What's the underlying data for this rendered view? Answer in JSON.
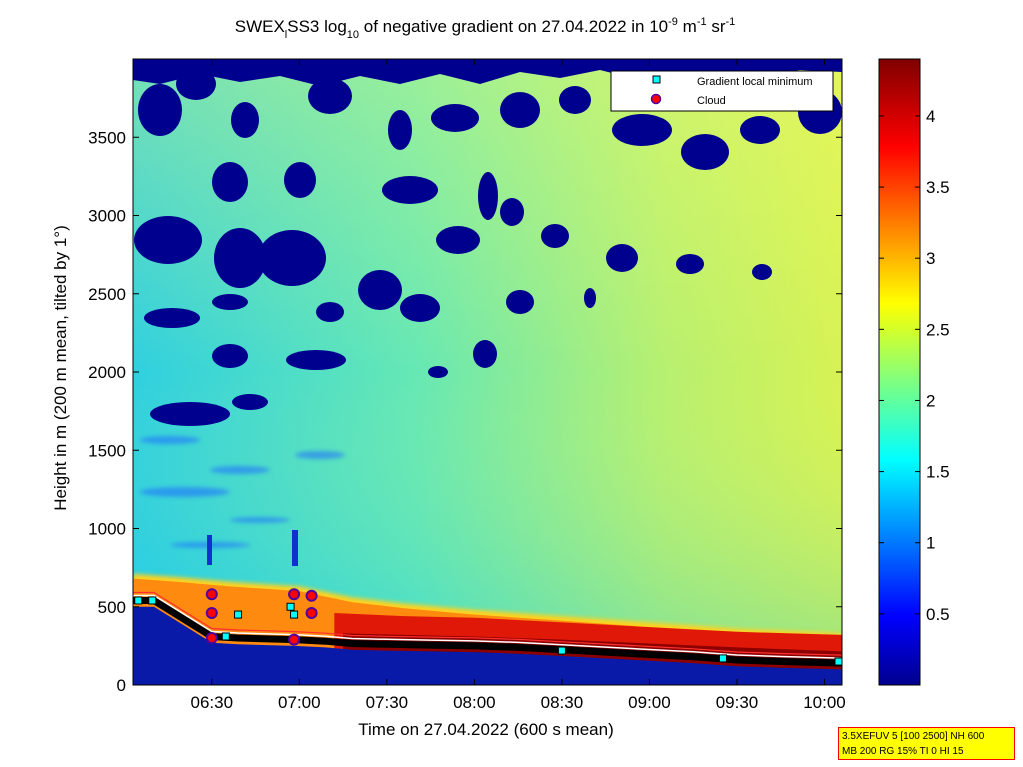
{
  "chart_data": {
    "type": "heatmap",
    "title": {
      "main": "SWEX",
      "sub1": "l",
      "mid": "SS3 log",
      "sub2": "10",
      "rest": " of negative gradient on 27.04.2022 in 10",
      "sup1": "-9",
      "unit_m": " m",
      "sup2": "-1",
      "unit_sr": " sr",
      "sup3": "-1"
    },
    "xlabel": "Time on 27.04.2022 (600 s mean)",
    "ylabel": "Height in m (200 m mean, tilted by 1°)",
    "x_range_hours": [
      6.05,
      10.1
    ],
    "x_ticks": [
      {
        "value": 6.5,
        "label": "06:30"
      },
      {
        "value": 7.0,
        "label": "07:00"
      },
      {
        "value": 7.5,
        "label": "07:30"
      },
      {
        "value": 8.0,
        "label": "08:00"
      },
      {
        "value": 8.5,
        "label": "08:30"
      },
      {
        "value": 9.0,
        "label": "09:00"
      },
      {
        "value": 9.5,
        "label": "09:30"
      },
      {
        "value": 10.0,
        "label": "10:00"
      }
    ],
    "ylim": [
      0,
      4000
    ],
    "y_ticks": [
      0,
      500,
      1000,
      1500,
      2000,
      2500,
      3000,
      3500
    ],
    "colorbar": {
      "range": [
        0,
        4.4
      ],
      "ticks": [
        0.5,
        1,
        1.5,
        2,
        2.5,
        3,
        3.5,
        4
      ],
      "colormap": "jet"
    },
    "legend": {
      "placement": "top-right",
      "entries": [
        {
          "label": "Gradient local minimum",
          "marker": "square",
          "color": "#00ffff"
        },
        {
          "label": "Cloud",
          "marker": "circle",
          "color": "#ff0000"
        }
      ]
    },
    "gradient_local_minimum_points": [
      {
        "time": 6.08,
        "height": 540
      },
      {
        "time": 6.16,
        "height": 540
      },
      {
        "time": 6.58,
        "height": 310
      },
      {
        "time": 6.65,
        "height": 450
      },
      {
        "time": 6.95,
        "height": 500
      },
      {
        "time": 6.97,
        "height": 450
      },
      {
        "time": 8.5,
        "height": 220
      },
      {
        "time": 9.42,
        "height": 170
      },
      {
        "time": 10.08,
        "height": 150
      }
    ],
    "cloud_points": [
      {
        "time": 6.5,
        "height": 580
      },
      {
        "time": 6.5,
        "height": 460
      },
      {
        "time": 6.5,
        "height": 300
      },
      {
        "time": 6.97,
        "height": 580
      },
      {
        "time": 7.07,
        "height": 570
      },
      {
        "time": 7.07,
        "height": 460
      },
      {
        "time": 6.97,
        "height": 290
      }
    ],
    "boundary_line": [
      [
        6.05,
        540
      ],
      [
        6.17,
        540
      ],
      [
        6.5,
        310
      ],
      [
        6.65,
        300
      ],
      [
        6.97,
        290
      ],
      [
        7.15,
        280
      ],
      [
        7.3,
        265
      ],
      [
        7.5,
        260
      ],
      [
        7.75,
        255
      ],
      [
        8.0,
        250
      ],
      [
        8.25,
        240
      ],
      [
        8.5,
        225
      ],
      [
        8.75,
        210
      ],
      [
        9.0,
        195
      ],
      [
        9.25,
        180
      ],
      [
        9.5,
        160
      ],
      [
        9.75,
        150
      ],
      [
        10.1,
        140
      ]
    ],
    "layers": {
      "aerosol_top": [
        [
          6.05,
          710
        ],
        [
          6.3,
          690
        ],
        [
          6.6,
          660
        ],
        [
          7.0,
          630
        ],
        [
          7.3,
          560
        ],
        [
          7.6,
          520
        ],
        [
          8.0,
          480
        ],
        [
          8.5,
          440
        ],
        [
          9.0,
          400
        ],
        [
          9.5,
          360
        ],
        [
          10.1,
          330
        ]
      ],
      "red_core_top": [
        [
          7.2,
          460
        ],
        [
          7.6,
          440
        ],
        [
          8.0,
          430
        ],
        [
          8.5,
          400
        ],
        [
          9.0,
          370
        ],
        [
          9.5,
          340
        ],
        [
          10.1,
          320
        ]
      ],
      "dark_red_top": [
        [
          7.25,
          330
        ],
        [
          7.6,
          320
        ],
        [
          8.0,
          310
        ],
        [
          8.5,
          290
        ],
        [
          9.0,
          265
        ],
        [
          9.5,
          240
        ],
        [
          10.1,
          215
        ]
      ]
    }
  },
  "info_box": {
    "line1": "3.5XEFUV 5 [100 2500] NH 600",
    "line2": "MB 200 RG 15% TI 0 HI 15"
  }
}
